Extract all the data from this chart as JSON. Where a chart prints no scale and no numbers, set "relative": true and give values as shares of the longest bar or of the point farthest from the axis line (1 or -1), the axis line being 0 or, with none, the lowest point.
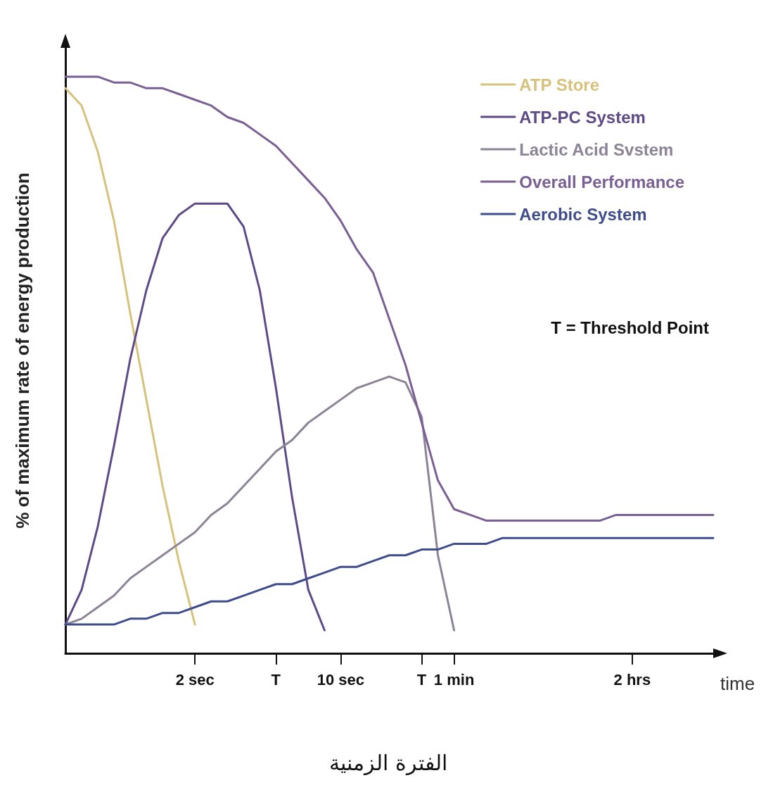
{
  "chart_data": {
    "type": "line",
    "relative": true,
    "ylabel": "% of maximum rate of energy production",
    "xlabel": "time",
    "categories": [
      null,
      null,
      null,
      null,
      null,
      null,
      null,
      null,
      "2 sec",
      null,
      null,
      null,
      null,
      "T",
      null,
      null,
      null,
      "10 sec",
      null,
      null,
      null,
      null,
      "T",
      null,
      "1 min",
      null,
      null,
      null,
      null,
      null,
      null,
      null,
      null,
      null,
      null,
      "2 hrs",
      null,
      null,
      null,
      null,
      null
    ],
    "series": [
      {
        "name": "ATP Store",
        "color": "#d6c27a",
        "values": [
          0.98,
          0.95,
          0.87,
          0.75,
          0.59,
          0.44,
          0.29,
          0.16,
          0.05,
          null,
          null,
          null,
          null,
          null,
          null,
          null,
          null,
          null,
          null,
          null,
          null,
          null,
          null,
          null,
          null,
          null,
          null,
          null,
          null,
          null,
          null,
          null,
          null,
          null,
          null,
          null,
          null,
          null,
          null,
          null,
          null
        ]
      },
      {
        "name": "ATP-PC System",
        "color": "#5e4a86",
        "values": [
          0.05,
          0.11,
          0.22,
          0.36,
          0.51,
          0.63,
          0.72,
          0.76,
          0.78,
          0.78,
          0.78,
          0.74,
          0.63,
          0.46,
          0.27,
          0.11,
          0.04,
          null,
          null,
          null,
          null,
          null,
          null,
          null,
          null,
          null,
          null,
          null,
          null,
          null,
          null,
          null,
          null,
          null,
          null,
          null,
          null,
          null,
          null,
          null,
          null
        ]
      },
      {
        "name": "Lactic Acid Svstem",
        "color": "#8c8496",
        "values": [
          0.05,
          0.06,
          0.08,
          0.1,
          0.13,
          0.15,
          0.17,
          0.19,
          0.21,
          0.24,
          0.26,
          0.29,
          0.32,
          0.35,
          0.37,
          0.4,
          0.42,
          0.44,
          0.46,
          0.47,
          0.48,
          0.47,
          0.41,
          0.17,
          0.04,
          null,
          null,
          null,
          null,
          null,
          null,
          null,
          null,
          null,
          null,
          null,
          null,
          null,
          null,
          null,
          null
        ]
      },
      {
        "name": "Overall Performance",
        "color": "#7a5f94",
        "values": [
          1.0,
          1.0,
          1.0,
          0.99,
          0.99,
          0.98,
          0.98,
          0.97,
          0.96,
          0.95,
          0.93,
          0.92,
          0.9,
          0.88,
          0.85,
          0.82,
          0.79,
          0.75,
          0.7,
          0.66,
          0.58,
          0.5,
          0.4,
          0.3,
          0.25,
          0.24,
          0.23,
          0.23,
          0.23,
          0.23,
          0.23,
          0.23,
          0.23,
          0.23,
          0.24,
          0.24,
          0.24,
          0.24,
          0.24,
          0.24,
          0.24
        ]
      },
      {
        "name": "Aerobic System",
        "color": "#3f4d8c",
        "values": [
          0.05,
          0.05,
          0.05,
          0.05,
          0.06,
          0.06,
          0.07,
          0.07,
          0.08,
          0.09,
          0.09,
          0.1,
          0.11,
          0.12,
          0.12,
          0.13,
          0.14,
          0.15,
          0.15,
          0.16,
          0.17,
          0.17,
          0.18,
          0.18,
          0.19,
          0.19,
          0.19,
          0.2,
          0.2,
          0.2,
          0.2,
          0.2,
          0.2,
          0.2,
          0.2,
          0.2,
          0.2,
          0.2,
          0.2,
          0.2,
          0.2
        ]
      }
    ],
    "legend": "top right",
    "grid": false,
    "marker": "none",
    "line_style": "solid",
    "annotations": [
      "T = Threshold Point",
      "الفترة الزمنية"
    ]
  }
}
